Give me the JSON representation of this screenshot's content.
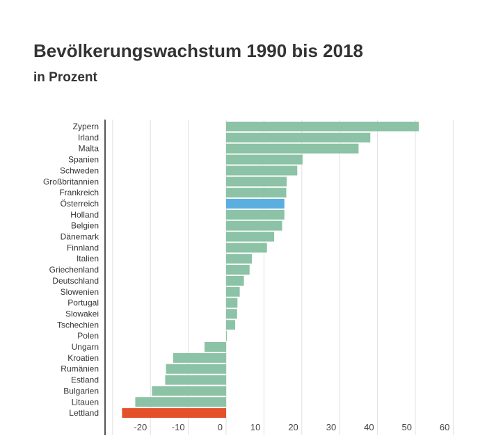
{
  "chart_data": {
    "type": "bar",
    "orientation": "horizontal",
    "title": "Bevölkerungswachstum 1990 bis 2018",
    "subtitle": "in Prozent",
    "xlabel": "",
    "ylabel": "",
    "xlim": [
      -30,
      60
    ],
    "grid": true,
    "x_ticks": [
      -20,
      -10,
      0,
      10,
      20,
      30,
      40,
      50,
      60
    ],
    "categories": [
      "Zypern",
      "Irland",
      "Malta",
      "Spanien",
      "Schweden",
      "Großbritannien",
      "Frankreich",
      "Österreich",
      "Holland",
      "Belgien",
      "Dänemark",
      "Finnland",
      "Italien",
      "Griechenland",
      "Deutschland",
      "Slowenien",
      "Portugal",
      "Slowakei",
      "Tschechien",
      "Polen",
      "Ungarn",
      "Kroatien",
      "Rumänien",
      "Estland",
      "Bulgarien",
      "Litauen",
      "Lettland"
    ],
    "values": [
      50.9,
      38.1,
      35.0,
      20.2,
      18.8,
      16.0,
      15.9,
      15.4,
      15.4,
      14.8,
      12.7,
      10.8,
      6.8,
      6.2,
      4.7,
      3.6,
      3.0,
      2.9,
      2.4,
      0.1,
      -5.7,
      -14.0,
      -15.9,
      -16.1,
      -19.6,
      -24.0,
      -27.5
    ],
    "colors": {
      "default": "#8cc2a5",
      "highlight_austria": "#5aafe0",
      "highlight_lowest": "#e3502a",
      "grid": "#e2e2e2",
      "axis": "#555555"
    },
    "highlighted": {
      "Österreich": "highlight_austria",
      "Lettland": "highlight_lowest"
    }
  }
}
